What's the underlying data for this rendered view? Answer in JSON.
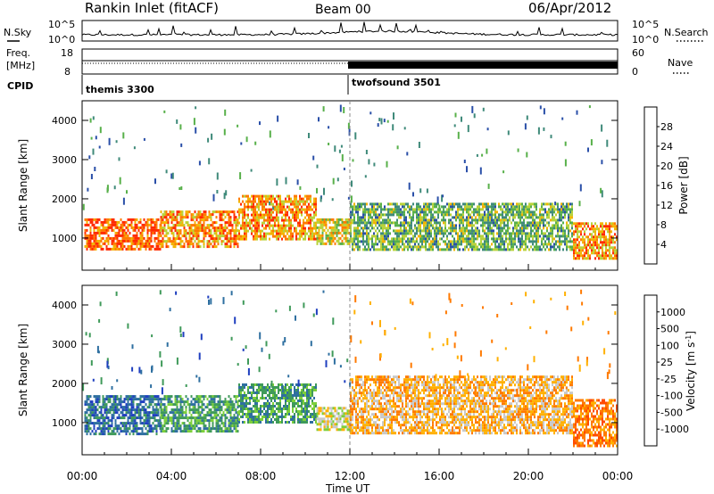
{
  "header": {
    "station": "Rankin Inlet (fitACF)",
    "beam": "Beam 00",
    "date": "06/Apr/2012"
  },
  "summary": {
    "nsky_label": "N.Sky",
    "nsearch_label": "N.Search",
    "freq_label_line1": "Freq.",
    "freq_label_line2": "[MHz]",
    "nave_label": "Nave",
    "cpid_label": "CPID",
    "noise_ticks_left": [
      "10^5",
      "10^0"
    ],
    "noise_ticks_right": [
      "10^5",
      "10^0"
    ],
    "freq_ticks": [
      "18",
      "8"
    ],
    "nave_ticks": [
      "60",
      "0"
    ],
    "cpid_segments": [
      {
        "name": "themis 3300",
        "start_hour": 0,
        "end_hour": 12
      },
      {
        "name": "twofsound 3501",
        "start_hour": 12,
        "end_hour": 24
      }
    ]
  },
  "chart_data": [
    {
      "type": "heatmap",
      "panel": "power",
      "ylabel": "Slant Range [km]",
      "xlabel": "",
      "xlim": [
        0,
        24
      ],
      "ylim": [
        180,
        4500
      ],
      "yticks": [
        1000,
        2000,
        3000,
        4000
      ],
      "colorbar": {
        "label": "Power [dB]",
        "levels": [
          0,
          4,
          8,
          12,
          16,
          20,
          24,
          28,
          32
        ],
        "tick_labels": [
          "4",
          "8",
          "12",
          "16",
          "20",
          "24",
          "28"
        ],
        "colors": [
          "#0000ff",
          "#2a4fa8",
          "#3f8a7a",
          "#58b04a",
          "#b8d23a",
          "#f2b400",
          "#ff7a00",
          "#ff2a00"
        ]
      },
      "echo_bands": [
        {
          "x": [
            0.1,
            3.5
          ],
          "range_km": [
            700,
            1500
          ],
          "value": 28
        },
        {
          "x": [
            3.5,
            7.0
          ],
          "range_km": [
            800,
            1700
          ],
          "value": 24
        },
        {
          "x": [
            7.0,
            10.5
          ],
          "range_km": [
            1000,
            2100
          ],
          "value": 24
        },
        {
          "x": [
            10.5,
            12.0
          ],
          "range_km": [
            850,
            1500
          ],
          "value": 20
        },
        {
          "x": [
            12.0,
            22.0
          ],
          "range_km": [
            700,
            1900
          ],
          "value": 14
        },
        {
          "x": [
            22.0,
            24.0
          ],
          "range_km": [
            500,
            1400
          ],
          "value": 24
        }
      ]
    },
    {
      "type": "heatmap",
      "panel": "velocity",
      "ylabel": "Slant Range [km]",
      "xlabel": "Time UT",
      "xlim": [
        0,
        24
      ],
      "ylim": [
        180,
        4500
      ],
      "xticks": [
        "00:00",
        "04:00",
        "08:00",
        "12:00",
        "16:00",
        "20:00",
        "00:00"
      ],
      "yticks": [
        1000,
        2000,
        3000,
        4000
      ],
      "colorbar": {
        "label": "Velocity [m s^-1]",
        "tick_labels": [
          "1000",
          "500",
          "100",
          "25",
          "-25",
          "-100",
          "-500",
          "-1000"
        ],
        "colors": [
          "#1f3fbf",
          "#2e6fa0",
          "#3f9a5a",
          "#7ccf3a",
          "#c8c8c8",
          "#ffb000",
          "#ff7a00",
          "#ff4a00",
          "#ff0000"
        ]
      },
      "echo_bands": [
        {
          "x": [
            0.1,
            3.5
          ],
          "range_km": [
            700,
            1700
          ],
          "value": 500
        },
        {
          "x": [
            3.5,
            7.0
          ],
          "range_km": [
            800,
            1700
          ],
          "value": 100
        },
        {
          "x": [
            7.0,
            10.5
          ],
          "range_km": [
            1000,
            2000
          ],
          "value": 100
        },
        {
          "x": [
            10.5,
            12.0
          ],
          "range_km": [
            800,
            1400
          ],
          "value": -25
        },
        {
          "x": [
            12.0,
            22.0
          ],
          "range_km": [
            700,
            2200
          ],
          "value": -100
        },
        {
          "x": [
            22.0,
            24.0
          ],
          "range_km": [
            400,
            1600
          ],
          "value": -500
        }
      ]
    }
  ]
}
